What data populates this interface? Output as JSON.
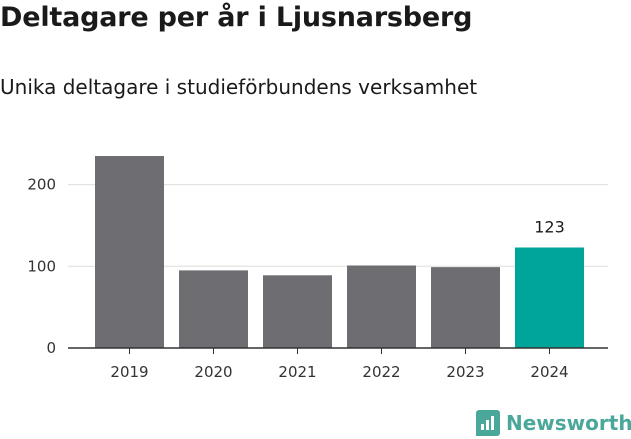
{
  "header": {
    "title": "Deltagare per år i Ljusnarsberg",
    "subtitle": "Unika deltagare i studieförbundens verksamhet"
  },
  "brand": {
    "name": "Newsworthy",
    "icon": "newsworthy-logo-icon"
  },
  "colors": {
    "bar": "#6e6d72",
    "highlight": "#00a59a",
    "grid": "#dedede",
    "axis": "#333333"
  },
  "chart_data": {
    "type": "bar",
    "categories": [
      "2019",
      "2020",
      "2021",
      "2022",
      "2023",
      "2024"
    ],
    "values": [
      235,
      95,
      89,
      101,
      99,
      123
    ],
    "highlight_index": 5,
    "data_labels": [
      {
        "index": 5,
        "text": "123"
      }
    ],
    "title": "Deltagare per år i Ljusnarsberg",
    "subtitle": "Unika deltagare i studieförbundens verksamhet",
    "xlabel": "",
    "ylabel": "",
    "ylim": [
      0,
      235
    ],
    "yticks": [
      0,
      100,
      200
    ],
    "grid": true,
    "legend": "none"
  }
}
